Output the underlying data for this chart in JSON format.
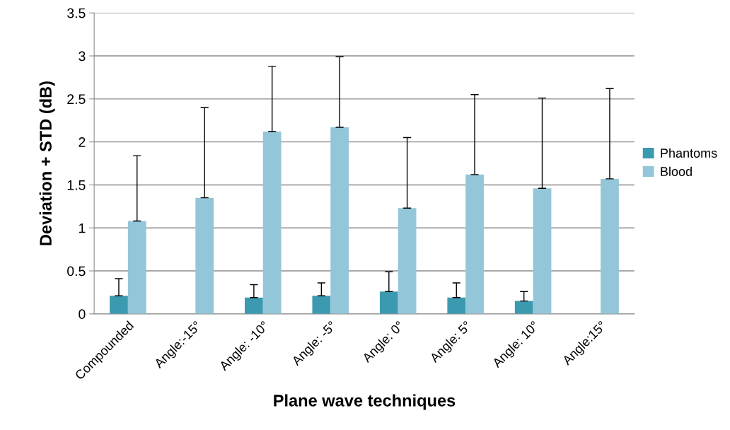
{
  "chart_data": {
    "type": "bar",
    "xlabel": "Plane wave techniques",
    "ylabel": "Deviation + STD (dB)",
    "categories": [
      "Compounded",
      "Angle:-15°",
      "Angle: -10°",
      "Angle: -5°",
      "Angle: 0°",
      "Angle: 5°",
      "Angle: 10°",
      "Angle:15°"
    ],
    "series": [
      {
        "name": "Phantoms",
        "color": "#3b9ab0",
        "values": [
          0.21,
          null,
          0.19,
          0.21,
          0.26,
          0.19,
          0.15,
          null
        ],
        "errors": [
          [
            0.21,
            0.41
          ],
          null,
          [
            0.19,
            0.34
          ],
          [
            0.21,
            0.36
          ],
          [
            0.26,
            0.49
          ],
          [
            0.19,
            0.36
          ],
          [
            0.15,
            0.26
          ],
          null
        ]
      },
      {
        "name": "Blood",
        "color": "#93c6d8",
        "values": [
          1.08,
          1.35,
          2.12,
          2.17,
          1.23,
          1.62,
          1.46,
          1.57
        ],
        "errors": [
          [
            1.08,
            1.84
          ],
          [
            1.35,
            2.4
          ],
          [
            2.12,
            2.88
          ],
          [
            2.17,
            2.99
          ],
          [
            1.23,
            2.05
          ],
          [
            1.62,
            2.55
          ],
          [
            1.46,
            2.51
          ],
          [
            1.57,
            2.62
          ]
        ]
      }
    ],
    "ylim": [
      0,
      3.5
    ],
    "yticks": [
      0,
      0.5,
      1,
      1.5,
      2,
      2.5,
      3,
      3.5
    ],
    "grid": "y",
    "legend": "right"
  }
}
